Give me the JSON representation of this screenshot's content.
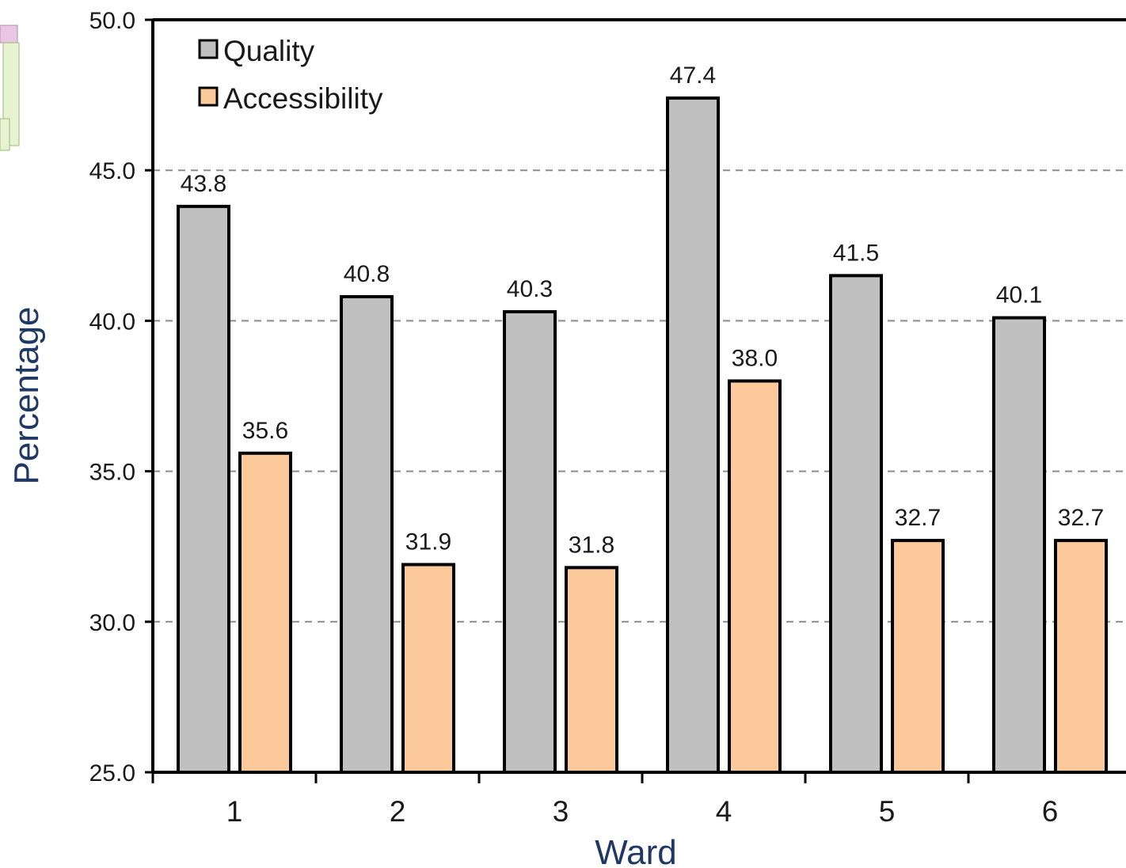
{
  "chart_data": {
    "type": "bar",
    "categories": [
      "1",
      "2",
      "3",
      "4",
      "5",
      "6"
    ],
    "series": [
      {
        "name": "Quality",
        "color": "#c0c0c0",
        "values": [
          43.8,
          40.8,
          40.3,
          47.4,
          41.5,
          40.1
        ],
        "value_labels": [
          "43.8",
          "40.8",
          "40.3",
          "47.4",
          "41.5",
          "40.1"
        ]
      },
      {
        "name": "Accessibility",
        "color": "#fcc99a",
        "values": [
          35.6,
          31.9,
          31.8,
          38.0,
          32.7,
          32.7
        ],
        "value_labels": [
          "35.6",
          "31.9",
          "31.8",
          "38.0",
          "32.7",
          "32.7"
        ]
      }
    ],
    "xlabel": "Ward",
    "ylabel": "Percentage",
    "ylim": [
      25.0,
      50.0
    ],
    "yticks": [
      25.0,
      30.0,
      35.0,
      40.0,
      45.0,
      50.0
    ],
    "ytick_labels": [
      "25.0",
      "30.0",
      "35.0",
      "40.0",
      "45.0",
      "50.0"
    ],
    "grid": "horizontal-dashed",
    "legend_position": "top-left",
    "axis_title_color": "#1f3864"
  }
}
